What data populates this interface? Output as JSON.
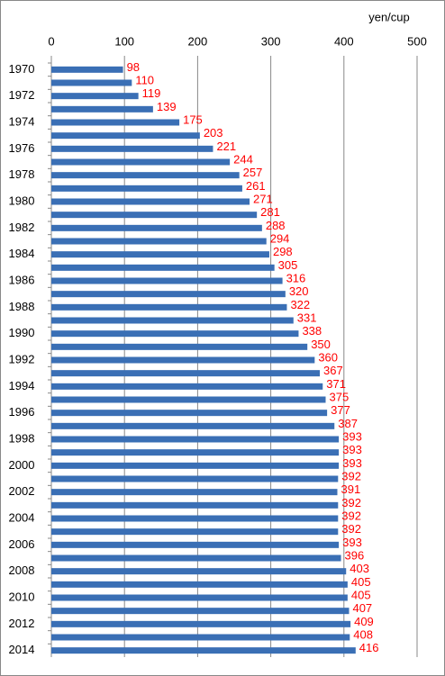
{
  "chart_data": {
    "type": "hbar",
    "x_label": "yen/cup",
    "categories": [
      "1970",
      null,
      "1972",
      null,
      "1974",
      null,
      "1976",
      null,
      "1978",
      null,
      "1980",
      null,
      "1982",
      null,
      "1984",
      null,
      "1986",
      null,
      "1988",
      null,
      "1990",
      null,
      "1992",
      null,
      "1994",
      null,
      "1996",
      null,
      "1998",
      null,
      "2000",
      null,
      "2002",
      null,
      "2004",
      null,
      "2006",
      null,
      "2008",
      null,
      "2010",
      null,
      "2012",
      null,
      "2014"
    ],
    "values": [
      98,
      110,
      119,
      139,
      175,
      203,
      221,
      244,
      257,
      261,
      271,
      281,
      288,
      294,
      298,
      305,
      316,
      320,
      322,
      331,
      338,
      350,
      360,
      367,
      371,
      375,
      377,
      387,
      393,
      393,
      393,
      392,
      391,
      392,
      392,
      392,
      393,
      396,
      403,
      405,
      405,
      407,
      409,
      408,
      416
    ],
    "color": "#3a6fb5",
    "value_label_color": "#ff0000",
    "xlim": [
      0,
      500
    ],
    "xticks": [
      0,
      100,
      200,
      300,
      400,
      500
    ],
    "grid": true
  }
}
